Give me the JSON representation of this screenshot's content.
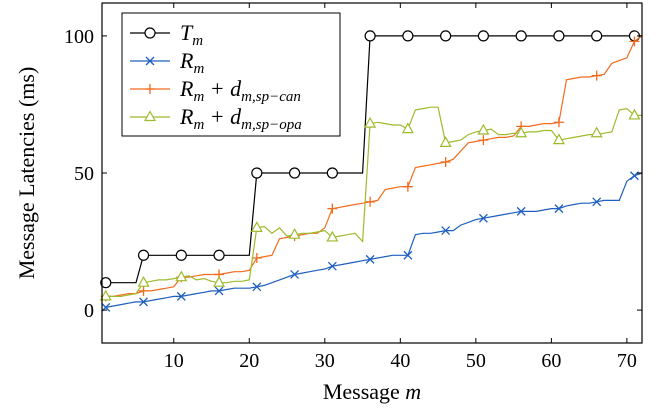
{
  "chart_data": {
    "type": "line",
    "xlabel": "Message m",
    "ylabel": "Message Latencies (ms)",
    "xlim": [
      0.5,
      72
    ],
    "ylim": [
      -12,
      112
    ],
    "xticks": [
      10,
      20,
      30,
      40,
      50,
      60,
      70
    ],
    "yticks": [
      0,
      50,
      100
    ],
    "grid": false,
    "legend_position": "top-left",
    "series": [
      {
        "name": "T_m",
        "legend_label": "T",
        "legend_sub": "m",
        "color": "#000000",
        "marker": "circle",
        "x": [
          1,
          5,
          6,
          20,
          21,
          35,
          36,
          72
        ],
        "y": [
          10,
          10,
          20,
          20,
          50,
          50,
          100,
          100
        ],
        "marker_x": [
          1,
          6,
          11,
          16,
          21,
          26,
          31,
          36,
          41,
          46,
          51,
          56,
          61,
          66,
          71
        ],
        "marker_y": [
          10,
          20,
          20,
          20,
          50,
          50,
          50,
          100,
          100,
          100,
          100,
          100,
          100,
          100,
          100
        ]
      },
      {
        "name": "R_m",
        "legend_label": "R",
        "legend_sub": "m",
        "color": "#1f5fbf",
        "marker": "x",
        "x": [
          1,
          2,
          3,
          4,
          5,
          6,
          7,
          8,
          9,
          10,
          11,
          12,
          13,
          14,
          15,
          16,
          17,
          18,
          19,
          20,
          21,
          22,
          23,
          24,
          25,
          26,
          27,
          28,
          29,
          30,
          31,
          32,
          33,
          34,
          35,
          36,
          37,
          38,
          39,
          40,
          41,
          42,
          43,
          44,
          45,
          46,
          47,
          48,
          49,
          50,
          51,
          52,
          53,
          54,
          55,
          56,
          57,
          58,
          59,
          60,
          61,
          62,
          63,
          64,
          65,
          66,
          67,
          68,
          69,
          70,
          71,
          72
        ],
        "y": [
          1,
          1.5,
          2,
          2.5,
          3,
          3,
          3.5,
          4,
          4.5,
          5,
          5,
          5.5,
          6,
          6.5,
          7,
          7,
          7.5,
          8,
          8,
          8,
          8.5,
          9,
          10,
          11,
          12,
          13,
          13.5,
          14,
          14.5,
          15,
          16,
          16.5,
          17,
          17.5,
          18,
          18.5,
          19,
          19.5,
          20,
          20,
          20,
          27.5,
          28,
          28,
          28.5,
          29,
          29,
          31,
          32,
          33,
          33.5,
          34,
          34.5,
          35,
          35.5,
          36,
          36,
          36,
          36.5,
          37,
          37,
          38,
          38.5,
          39,
          39,
          39.5,
          40,
          40,
          40,
          47,
          49,
          50
        ],
        "marker_x": [
          1,
          6,
          11,
          16,
          21,
          26,
          31,
          36,
          41,
          46,
          51,
          56,
          61,
          66,
          71
        ],
        "marker_y": [
          1,
          3,
          5,
          7,
          8.5,
          13,
          16,
          18.5,
          20,
          29,
          33.5,
          36,
          37,
          39.5,
          49
        ]
      },
      {
        "name": "R_m + d_m,sp-can",
        "legend_label": "R",
        "legend_sub": "m",
        "legend_extra": " + d",
        "legend_extra_sub": "m,sp−can",
        "color": "#f26b1d",
        "marker": "plus",
        "x": [
          1,
          2,
          3,
          4,
          5,
          6,
          7,
          8,
          9,
          10,
          11,
          12,
          13,
          14,
          15,
          16,
          17,
          18,
          19,
          20,
          21,
          22,
          23,
          24,
          25,
          26,
          27,
          28,
          29,
          30,
          31,
          32,
          33,
          34,
          35,
          36,
          37,
          38,
          39,
          40,
          41,
          42,
          43,
          44,
          45,
          46,
          47,
          48,
          49,
          50,
          51,
          52,
          53,
          54,
          55,
          56,
          57,
          58,
          59,
          60,
          61,
          62,
          63,
          64,
          65,
          66,
          67,
          68,
          69,
          70,
          71,
          72
        ],
        "y": [
          5,
          5,
          5.5,
          6,
          6,
          7,
          7,
          7.5,
          8,
          8.5,
          12,
          12,
          12.5,
          13,
          13,
          13,
          13.5,
          14,
          14,
          14.5,
          19,
          19.5,
          20,
          26,
          26.5,
          27,
          27.5,
          28,
          28,
          30,
          37,
          37.5,
          38,
          38.5,
          39,
          39.5,
          40,
          44,
          44.5,
          45,
          45,
          52,
          52.5,
          53,
          53.5,
          54,
          55,
          58,
          61,
          61.5,
          62,
          62.5,
          63,
          63,
          63.5,
          67,
          67,
          67.5,
          68,
          68,
          68.5,
          84,
          84.5,
          85,
          85,
          85.5,
          86,
          90,
          91,
          92,
          98,
          100
        ],
        "marker_x": [
          1,
          6,
          11,
          16,
          21,
          26,
          31,
          36,
          41,
          46,
          51,
          56,
          61,
          66,
          71
        ],
        "marker_y": [
          5,
          7,
          12,
          13,
          19,
          27,
          37,
          39.5,
          45,
          54,
          62,
          67,
          68.5,
          85.5,
          98
        ]
      },
      {
        "name": "R_m + d_m,sp-opa",
        "legend_label": "R",
        "legend_sub": "m",
        "legend_extra": " + d",
        "legend_extra_sub": "m,sp−opa",
        "color": "#9cbb2c",
        "marker": "triangle",
        "x": [
          1,
          2,
          3,
          4,
          5,
          6,
          7,
          8,
          9,
          10,
          11,
          12,
          13,
          14,
          15,
          16,
          17,
          18,
          19,
          20,
          21,
          22,
          23,
          24,
          25,
          26,
          27,
          28,
          29,
          30,
          31,
          32,
          33,
          34,
          35,
          36,
          37,
          38,
          39,
          40,
          41,
          42,
          43,
          44,
          45,
          46,
          47,
          48,
          49,
          50,
          51,
          52,
          53,
          54,
          55,
          56,
          57,
          58,
          59,
          60,
          61,
          62,
          63,
          64,
          65,
          66,
          67,
          68,
          69,
          70,
          71,
          72
        ],
        "y": [
          5,
          5,
          5,
          5.5,
          6,
          10,
          10.5,
          11,
          11,
          11.5,
          12,
          12.5,
          11,
          11.5,
          10.5,
          10,
          10,
          10.5,
          10.5,
          11,
          30,
          30.5,
          28,
          30,
          27,
          27.5,
          28,
          28,
          28.5,
          29,
          26.5,
          27,
          27.5,
          28,
          25,
          68,
          68.5,
          68,
          67.5,
          67.5,
          66,
          73,
          73.5,
          74,
          74,
          61,
          61.5,
          62,
          64,
          65,
          65.5,
          66,
          64,
          64,
          64.5,
          64.5,
          65,
          65,
          65.5,
          65.5,
          62,
          62.5,
          63,
          63.5,
          64,
          64,
          64.5,
          65,
          73,
          73.5,
          71,
          71
        ],
        "marker_x": [
          1,
          6,
          11,
          16,
          21,
          26,
          31,
          36,
          41,
          46,
          51,
          56,
          61,
          66,
          71
        ],
        "marker_y": [
          5,
          10,
          12,
          10,
          30,
          27.5,
          26.5,
          68,
          66,
          61,
          65.5,
          64.5,
          62,
          64.5,
          71
        ]
      }
    ]
  }
}
